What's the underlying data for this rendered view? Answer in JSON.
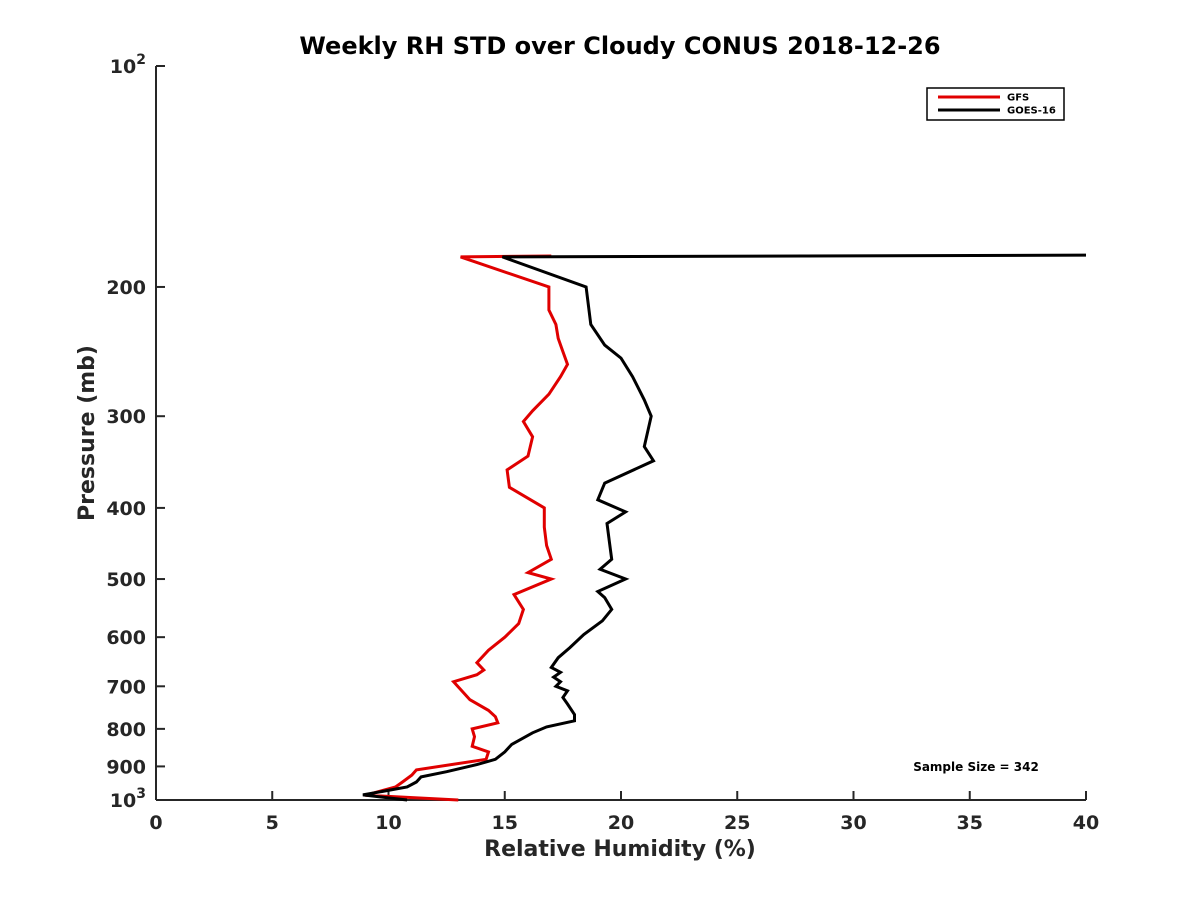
{
  "chart_data": {
    "type": "line",
    "title": "Weekly RH STD over Cloudy CONUS 2018-12-26",
    "xlabel": "Relative Humidity (%)",
    "ylabel": "Pressure (mb)",
    "xlim": [
      0,
      40
    ],
    "ylim": [
      100,
      1000
    ],
    "yscale": "log",
    "y_reversed": true,
    "grid": false,
    "legend_position": "top-right",
    "x_ticks": [
      0,
      5,
      10,
      15,
      20,
      25,
      30,
      35,
      40
    ],
    "y_ticks": [
      {
        "value": 100,
        "base": "10",
        "exp": "2"
      },
      {
        "value": 200,
        "label": "200"
      },
      {
        "value": 300,
        "label": "300"
      },
      {
        "value": 400,
        "label": "400"
      },
      {
        "value": 500,
        "label": "500"
      },
      {
        "value": 600,
        "label": "600"
      },
      {
        "value": 700,
        "label": "700"
      },
      {
        "value": 800,
        "label": "800"
      },
      {
        "value": 900,
        "label": "900"
      },
      {
        "value": 1000,
        "base": "10",
        "exp": "3"
      }
    ],
    "annotation": "Sample Size = 342",
    "series": [
      {
        "name": "GFS",
        "color": "#e00000",
        "points": [
          {
            "x": 13.0,
            "y": 1000
          },
          {
            "x": 9.0,
            "y": 985
          },
          {
            "x": 10.3,
            "y": 960
          },
          {
            "x": 10.6,
            "y": 945
          },
          {
            "x": 11.0,
            "y": 925
          },
          {
            "x": 11.2,
            "y": 910
          },
          {
            "x": 14.2,
            "y": 880
          },
          {
            "x": 14.3,
            "y": 860
          },
          {
            "x": 13.6,
            "y": 845
          },
          {
            "x": 13.7,
            "y": 820
          },
          {
            "x": 13.6,
            "y": 800
          },
          {
            "x": 14.7,
            "y": 785
          },
          {
            "x": 14.6,
            "y": 770
          },
          {
            "x": 14.3,
            "y": 755
          },
          {
            "x": 13.5,
            "y": 730
          },
          {
            "x": 12.8,
            "y": 690
          },
          {
            "x": 13.8,
            "y": 675
          },
          {
            "x": 14.1,
            "y": 665
          },
          {
            "x": 13.8,
            "y": 650
          },
          {
            "x": 14.3,
            "y": 625
          },
          {
            "x": 15.0,
            "y": 600
          },
          {
            "x": 15.6,
            "y": 575
          },
          {
            "x": 15.8,
            "y": 550
          },
          {
            "x": 15.4,
            "y": 525
          },
          {
            "x": 17.0,
            "y": 500
          },
          {
            "x": 16.0,
            "y": 490
          },
          {
            "x": 17.0,
            "y": 470
          },
          {
            "x": 16.8,
            "y": 450
          },
          {
            "x": 16.7,
            "y": 425
          },
          {
            "x": 16.7,
            "y": 400
          },
          {
            "x": 15.2,
            "y": 375
          },
          {
            "x": 15.1,
            "y": 355
          },
          {
            "x": 16.0,
            "y": 340
          },
          {
            "x": 16.2,
            "y": 320
          },
          {
            "x": 15.8,
            "y": 305
          },
          {
            "x": 16.2,
            "y": 295
          },
          {
            "x": 16.9,
            "y": 280
          },
          {
            "x": 17.4,
            "y": 265
          },
          {
            "x": 17.7,
            "y": 255
          },
          {
            "x": 17.5,
            "y": 245
          },
          {
            "x": 17.3,
            "y": 235
          },
          {
            "x": 17.2,
            "y": 225
          },
          {
            "x": 16.9,
            "y": 215
          },
          {
            "x": 16.9,
            "y": 200
          },
          {
            "x": 13.1,
            "y": 182
          },
          {
            "x": 17.0,
            "y": 181.5
          }
        ]
      },
      {
        "name": "GOES-16",
        "color": "#000000",
        "points": [
          {
            "x": 10.8,
            "y": 1000
          },
          {
            "x": 8.9,
            "y": 984
          },
          {
            "x": 10.8,
            "y": 960
          },
          {
            "x": 11.2,
            "y": 945
          },
          {
            "x": 11.4,
            "y": 930
          },
          {
            "x": 12.5,
            "y": 915
          },
          {
            "x": 13.8,
            "y": 895
          },
          {
            "x": 14.6,
            "y": 880
          },
          {
            "x": 15.0,
            "y": 860
          },
          {
            "x": 15.3,
            "y": 840
          },
          {
            "x": 16.2,
            "y": 810
          },
          {
            "x": 16.8,
            "y": 795
          },
          {
            "x": 18.0,
            "y": 780
          },
          {
            "x": 18.0,
            "y": 765
          },
          {
            "x": 17.7,
            "y": 740
          },
          {
            "x": 17.5,
            "y": 725
          },
          {
            "x": 17.7,
            "y": 710
          },
          {
            "x": 17.2,
            "y": 700
          },
          {
            "x": 17.4,
            "y": 690
          },
          {
            "x": 17.1,
            "y": 680
          },
          {
            "x": 17.4,
            "y": 670
          },
          {
            "x": 17.0,
            "y": 660
          },
          {
            "x": 17.3,
            "y": 640
          },
          {
            "x": 17.8,
            "y": 620
          },
          {
            "x": 18.4,
            "y": 595
          },
          {
            "x": 19.2,
            "y": 570
          },
          {
            "x": 19.6,
            "y": 550
          },
          {
            "x": 19.3,
            "y": 530
          },
          {
            "x": 19.0,
            "y": 520
          },
          {
            "x": 20.2,
            "y": 500
          },
          {
            "x": 19.1,
            "y": 485
          },
          {
            "x": 19.6,
            "y": 470
          },
          {
            "x": 19.5,
            "y": 445
          },
          {
            "x": 19.4,
            "y": 420
          },
          {
            "x": 20.2,
            "y": 405
          },
          {
            "x": 19.0,
            "y": 390
          },
          {
            "x": 19.3,
            "y": 370
          },
          {
            "x": 21.4,
            "y": 345
          },
          {
            "x": 21.0,
            "y": 330
          },
          {
            "x": 21.3,
            "y": 300
          },
          {
            "x": 21.0,
            "y": 285
          },
          {
            "x": 20.5,
            "y": 265
          },
          {
            "x": 20.0,
            "y": 250
          },
          {
            "x": 19.3,
            "y": 240
          },
          {
            "x": 18.7,
            "y": 225
          },
          {
            "x": 18.5,
            "y": 200
          },
          {
            "x": 14.9,
            "y": 182
          },
          {
            "x": 40.0,
            "y": 181
          }
        ]
      }
    ]
  }
}
